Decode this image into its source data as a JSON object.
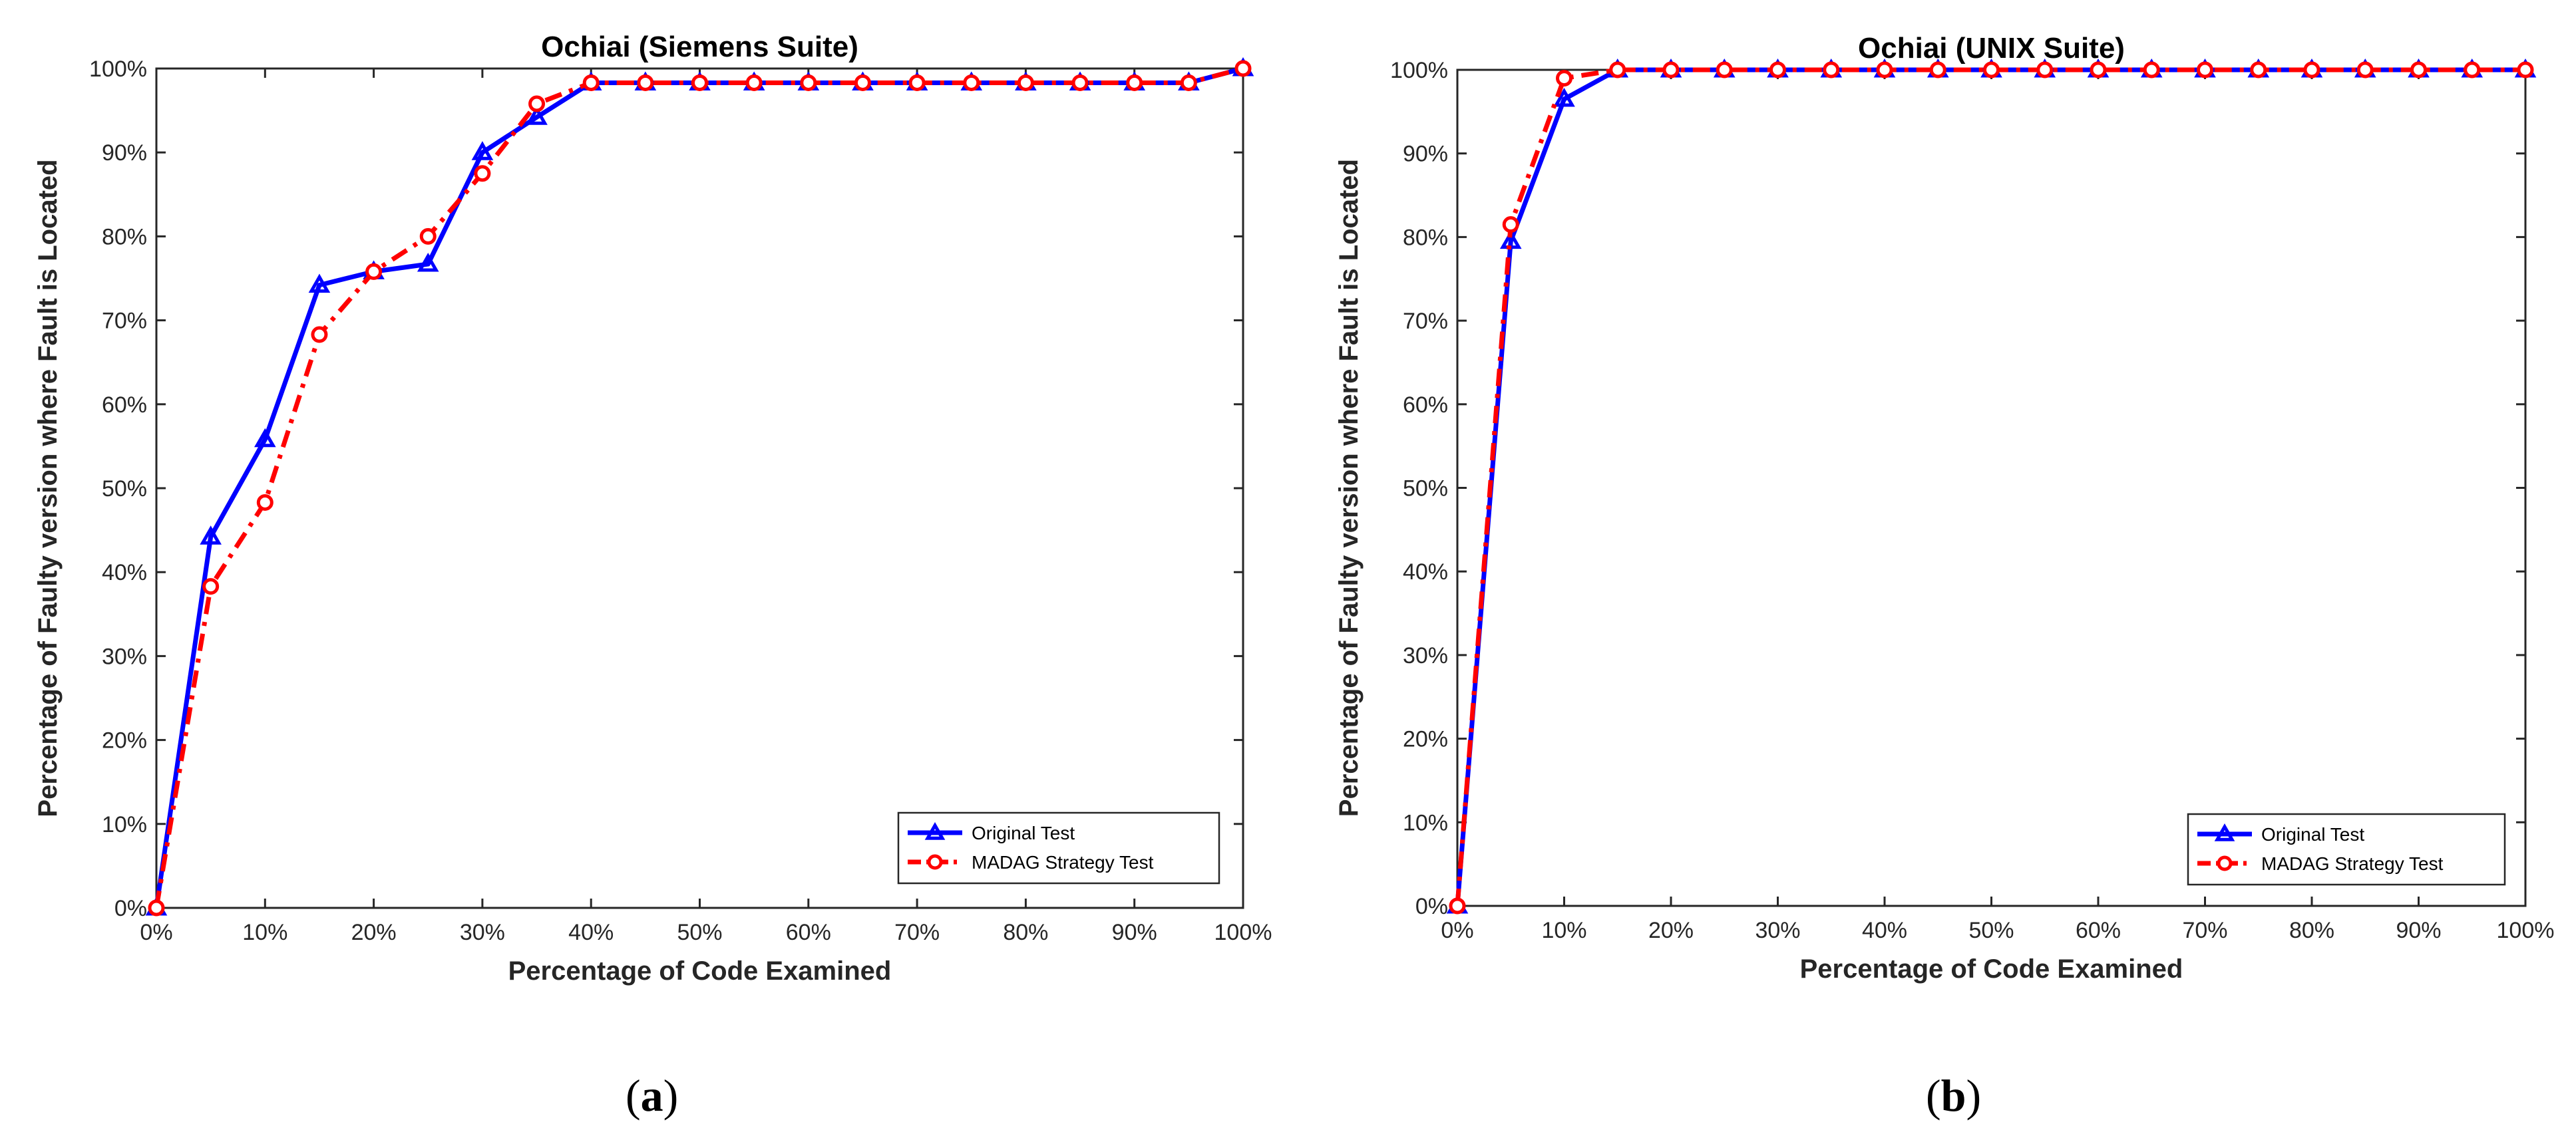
{
  "colors": {
    "original": "#0000ff",
    "madag": "#ff0000"
  },
  "captions": [
    {
      "open": "(",
      "letter": "a",
      "close": ")"
    },
    {
      "open": "(",
      "letter": "b",
      "close": ")"
    }
  ],
  "chart_data": [
    {
      "type": "line",
      "title": "Ochiai (Siemens Suite)",
      "xlabel": "Percentage of Code Examined",
      "ylabel": "Percentage of Faulty version where Fault is Located",
      "xlim": [
        0,
        100
      ],
      "ylim": [
        0,
        100
      ],
      "x_ticks": [
        "0%",
        "10%",
        "20%",
        "30%",
        "40%",
        "50%",
        "60%",
        "70%",
        "80%",
        "90%",
        "100%"
      ],
      "y_ticks": [
        "0%",
        "10%",
        "20%",
        "30%",
        "40%",
        "50%",
        "60%",
        "70%",
        "80%",
        "90%",
        "100%"
      ],
      "legend_position": "bottom-right",
      "grid": false,
      "x": [
        0,
        5,
        10,
        15,
        20,
        25,
        30,
        35,
        40,
        45,
        50,
        55,
        60,
        65,
        70,
        75,
        80,
        85,
        90,
        95,
        100
      ],
      "series": [
        {
          "name": "Original Test",
          "marker": "triangle",
          "line": "solid",
          "values": [
            0,
            44.2,
            55.8,
            74.2,
            75.8,
            76.7,
            90.0,
            94.2,
            98.3,
            98.3,
            98.3,
            98.3,
            98.3,
            98.3,
            98.3,
            98.3,
            98.3,
            98.3,
            98.3,
            98.3,
            100
          ]
        },
        {
          "name": "MADAG Strategy Test",
          "marker": "circle",
          "line": "dashdot",
          "values": [
            0,
            38.3,
            48.3,
            68.3,
            75.8,
            80.0,
            87.5,
            95.8,
            98.3,
            98.3,
            98.3,
            98.3,
            98.3,
            98.3,
            98.3,
            98.3,
            98.3,
            98.3,
            98.3,
            98.3,
            100
          ]
        }
      ]
    },
    {
      "type": "line",
      "title": "Ochiai (UNIX Suite)",
      "xlabel": "Percentage of Code Examined",
      "ylabel": "Percentage of Faulty version where Fault is Located",
      "xlim": [
        0,
        100
      ],
      "ylim": [
        0,
        100
      ],
      "x_ticks": [
        "0%",
        "10%",
        "20%",
        "30%",
        "40%",
        "50%",
        "60%",
        "70%",
        "80%",
        "90%",
        "100%"
      ],
      "y_ticks": [
        "0%",
        "10%",
        "20%",
        "30%",
        "40%",
        "50%",
        "60%",
        "70%",
        "80%",
        "90%",
        "100%"
      ],
      "legend_position": "bottom-right",
      "grid": false,
      "x": [
        0,
        5,
        10,
        15,
        20,
        25,
        30,
        35,
        40,
        45,
        50,
        55,
        60,
        65,
        70,
        75,
        80,
        85,
        90,
        95,
        100
      ],
      "series": [
        {
          "name": "Original Test",
          "marker": "triangle",
          "line": "solid",
          "values": [
            0,
            79.5,
            96.5,
            100,
            100,
            100,
            100,
            100,
            100,
            100,
            100,
            100,
            100,
            100,
            100,
            100,
            100,
            100,
            100,
            100,
            100
          ]
        },
        {
          "name": "MADAG Strategy Test",
          "marker": "circle",
          "line": "dashdot",
          "values": [
            0,
            81.5,
            99.0,
            100,
            100,
            100,
            100,
            100,
            100,
            100,
            100,
            100,
            100,
            100,
            100,
            100,
            100,
            100,
            100,
            100,
            100
          ]
        }
      ]
    }
  ]
}
